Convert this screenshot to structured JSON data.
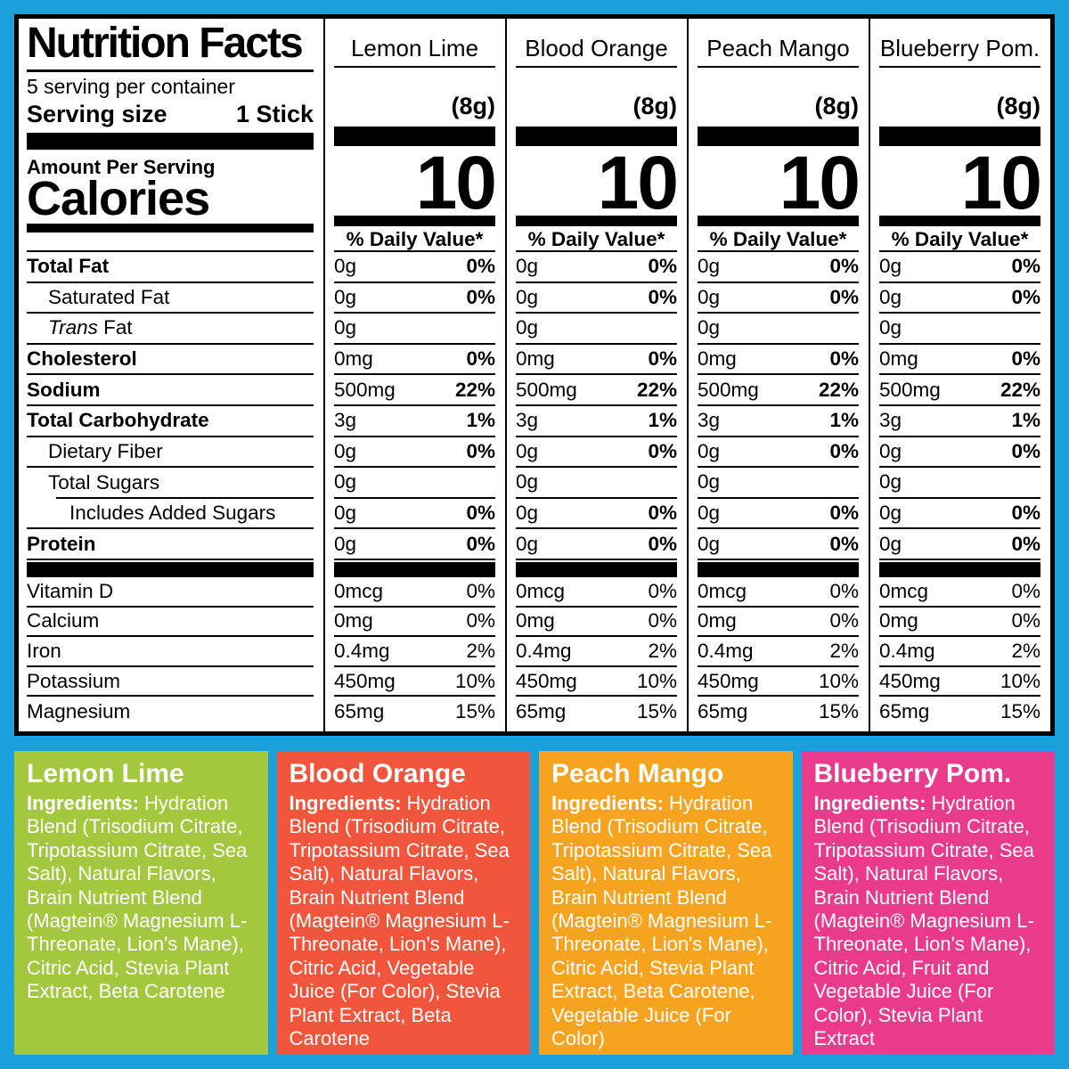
{
  "colors": {
    "background": "#1CA0DB",
    "lemon_lime": "#A3C83D",
    "blood_orange": "#F1553C",
    "peach_mango": "#F6A31F",
    "blueberry_pom": "#EA3A8C"
  },
  "table": {
    "title": "Nutrition Facts",
    "servings_per_container": "5 serving per container",
    "serving_size_label": "Serving size",
    "serving_size_value": "1 Stick",
    "amount_per_serving": "Amount Per Serving",
    "calories_label": "Calories",
    "flavors": [
      "Lemon Lime",
      "Blood Orange",
      "Peach Mango",
      "Blueberry Pom."
    ],
    "serving_weight": "(8g)",
    "calories_value": "10",
    "daily_value_header": "% Daily Value*",
    "main_rows": [
      {
        "label": "Total Fat",
        "bold": true,
        "indent": 0,
        "amount": "0g",
        "dv": "0%"
      },
      {
        "label": "Saturated Fat",
        "bold": false,
        "indent": 1,
        "amount": "0g",
        "dv": "0%"
      },
      {
        "label": "Trans Fat",
        "italic_prefix": "Trans",
        "bold": false,
        "indent": 1,
        "amount": "0g",
        "dv": ""
      },
      {
        "label": "Cholesterol",
        "bold": true,
        "indent": 0,
        "amount": "0mg",
        "dv": "0%"
      },
      {
        "label": "Sodium",
        "bold": true,
        "indent": 0,
        "amount": "500mg",
        "dv": "22%"
      },
      {
        "label": "Total Carbohydrate",
        "bold": true,
        "indent": 0,
        "amount": "3g",
        "dv": "1%"
      },
      {
        "label": "Dietary Fiber",
        "bold": false,
        "indent": 1,
        "amount": "0g",
        "dv": "0%"
      },
      {
        "label": "Total Sugars",
        "bold": false,
        "indent": 1,
        "amount": "0g",
        "dv": "",
        "indent_separator": true
      },
      {
        "label": "Includes Added Sugars",
        "bold": false,
        "indent": 2,
        "amount": "0g",
        "dv": "0%"
      },
      {
        "label": "Protein",
        "bold": true,
        "indent": 0,
        "amount": "0g",
        "dv": "0%"
      }
    ],
    "micro_rows": [
      {
        "label": "Vitamin D",
        "amount": "0mcg",
        "dv": "0%"
      },
      {
        "label": "Calcium",
        "amount": "0mg",
        "dv": "0%"
      },
      {
        "label": "Iron",
        "amount": "0.4mg",
        "dv": "2%"
      },
      {
        "label": "Potassium",
        "amount": "450mg",
        "dv": "10%"
      },
      {
        "label": "Magnesium",
        "amount": "65mg",
        "dv": "15%"
      }
    ]
  },
  "ingredient_boxes": [
    {
      "name": "lemon-lime",
      "title": "Lemon Lime",
      "color": "#A3C83D",
      "prefix": "Ingredients:",
      "body": "Hydration Blend (Trisodium Citrate, Tripotassium Citrate, Sea Salt), Natural Flavors, Brain Nutrient Blend (Magtein® Magnesium L-Threonate, Lion's Mane), Citric Acid, Stevia Plant Extract, Beta Carotene"
    },
    {
      "name": "blood-orange",
      "title": "Blood Orange",
      "color": "#F1553C",
      "prefix": "Ingredients:",
      "body": "Hydration Blend (Trisodium Citrate, Tripotassium Citrate, Sea Salt), Natural Flavors, Brain Nutrient Blend (Magtein® Magnesium L-Threonate, Lion's Mane), Citric Acid, Vegetable Juice (For Color), Stevia Plant Extract, Beta Carotene"
    },
    {
      "name": "peach-mango",
      "title": "Peach Mango",
      "color": "#F6A31F",
      "prefix": "Ingredients:",
      "body": "Hydration Blend (Trisodium Citrate, Tripotassium Citrate, Sea Salt), Natural Flavors, Brain Nutrient Blend (Magtein® Magnesium L-Threonate, Lion's Mane), Citric Acid, Stevia Plant Extract, Beta Carotene, Vegetable Juice (For Color)"
    },
    {
      "name": "blueberry-pom",
      "title": "Blueberry Pom.",
      "color": "#EA3A8C",
      "prefix": "Ingredients:",
      "body": "Hydration Blend (Trisodium Citrate, Tripotassium Citrate, Sea Salt), Natural Flavors, Brain Nutrient Blend (Magtein® Magnesium L-Threonate, Lion's Mane), Citric Acid, Fruit and Vegetable Juice (For Color), Stevia Plant Extract"
    }
  ]
}
